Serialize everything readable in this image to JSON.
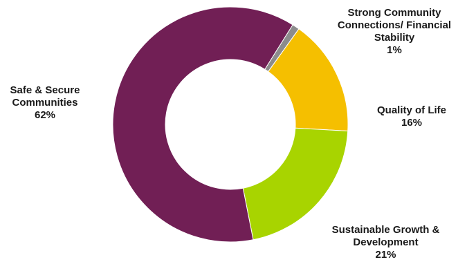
{
  "chart_data": {
    "type": "pie",
    "donut": true,
    "legend": "none",
    "slices": [
      {
        "name_lines": [
          "Strong Community",
          "Connections/ Financial",
          "Stability"
        ],
        "value": 1,
        "label": "1%",
        "color": "#8c8c8c"
      },
      {
        "name_lines": [
          "Quality of Life"
        ],
        "value": 16,
        "label": "16%",
        "color": "#f5bf00"
      },
      {
        "name_lines": [
          "Sustainable Growth &",
          "Development"
        ],
        "value": 21,
        "label": "21%",
        "color": "#a8d400"
      },
      {
        "name_lines": [
          "Safe & Secure",
          "Communities"
        ],
        "value": 62,
        "label": "62%",
        "color": "#711f55"
      }
    ]
  }
}
